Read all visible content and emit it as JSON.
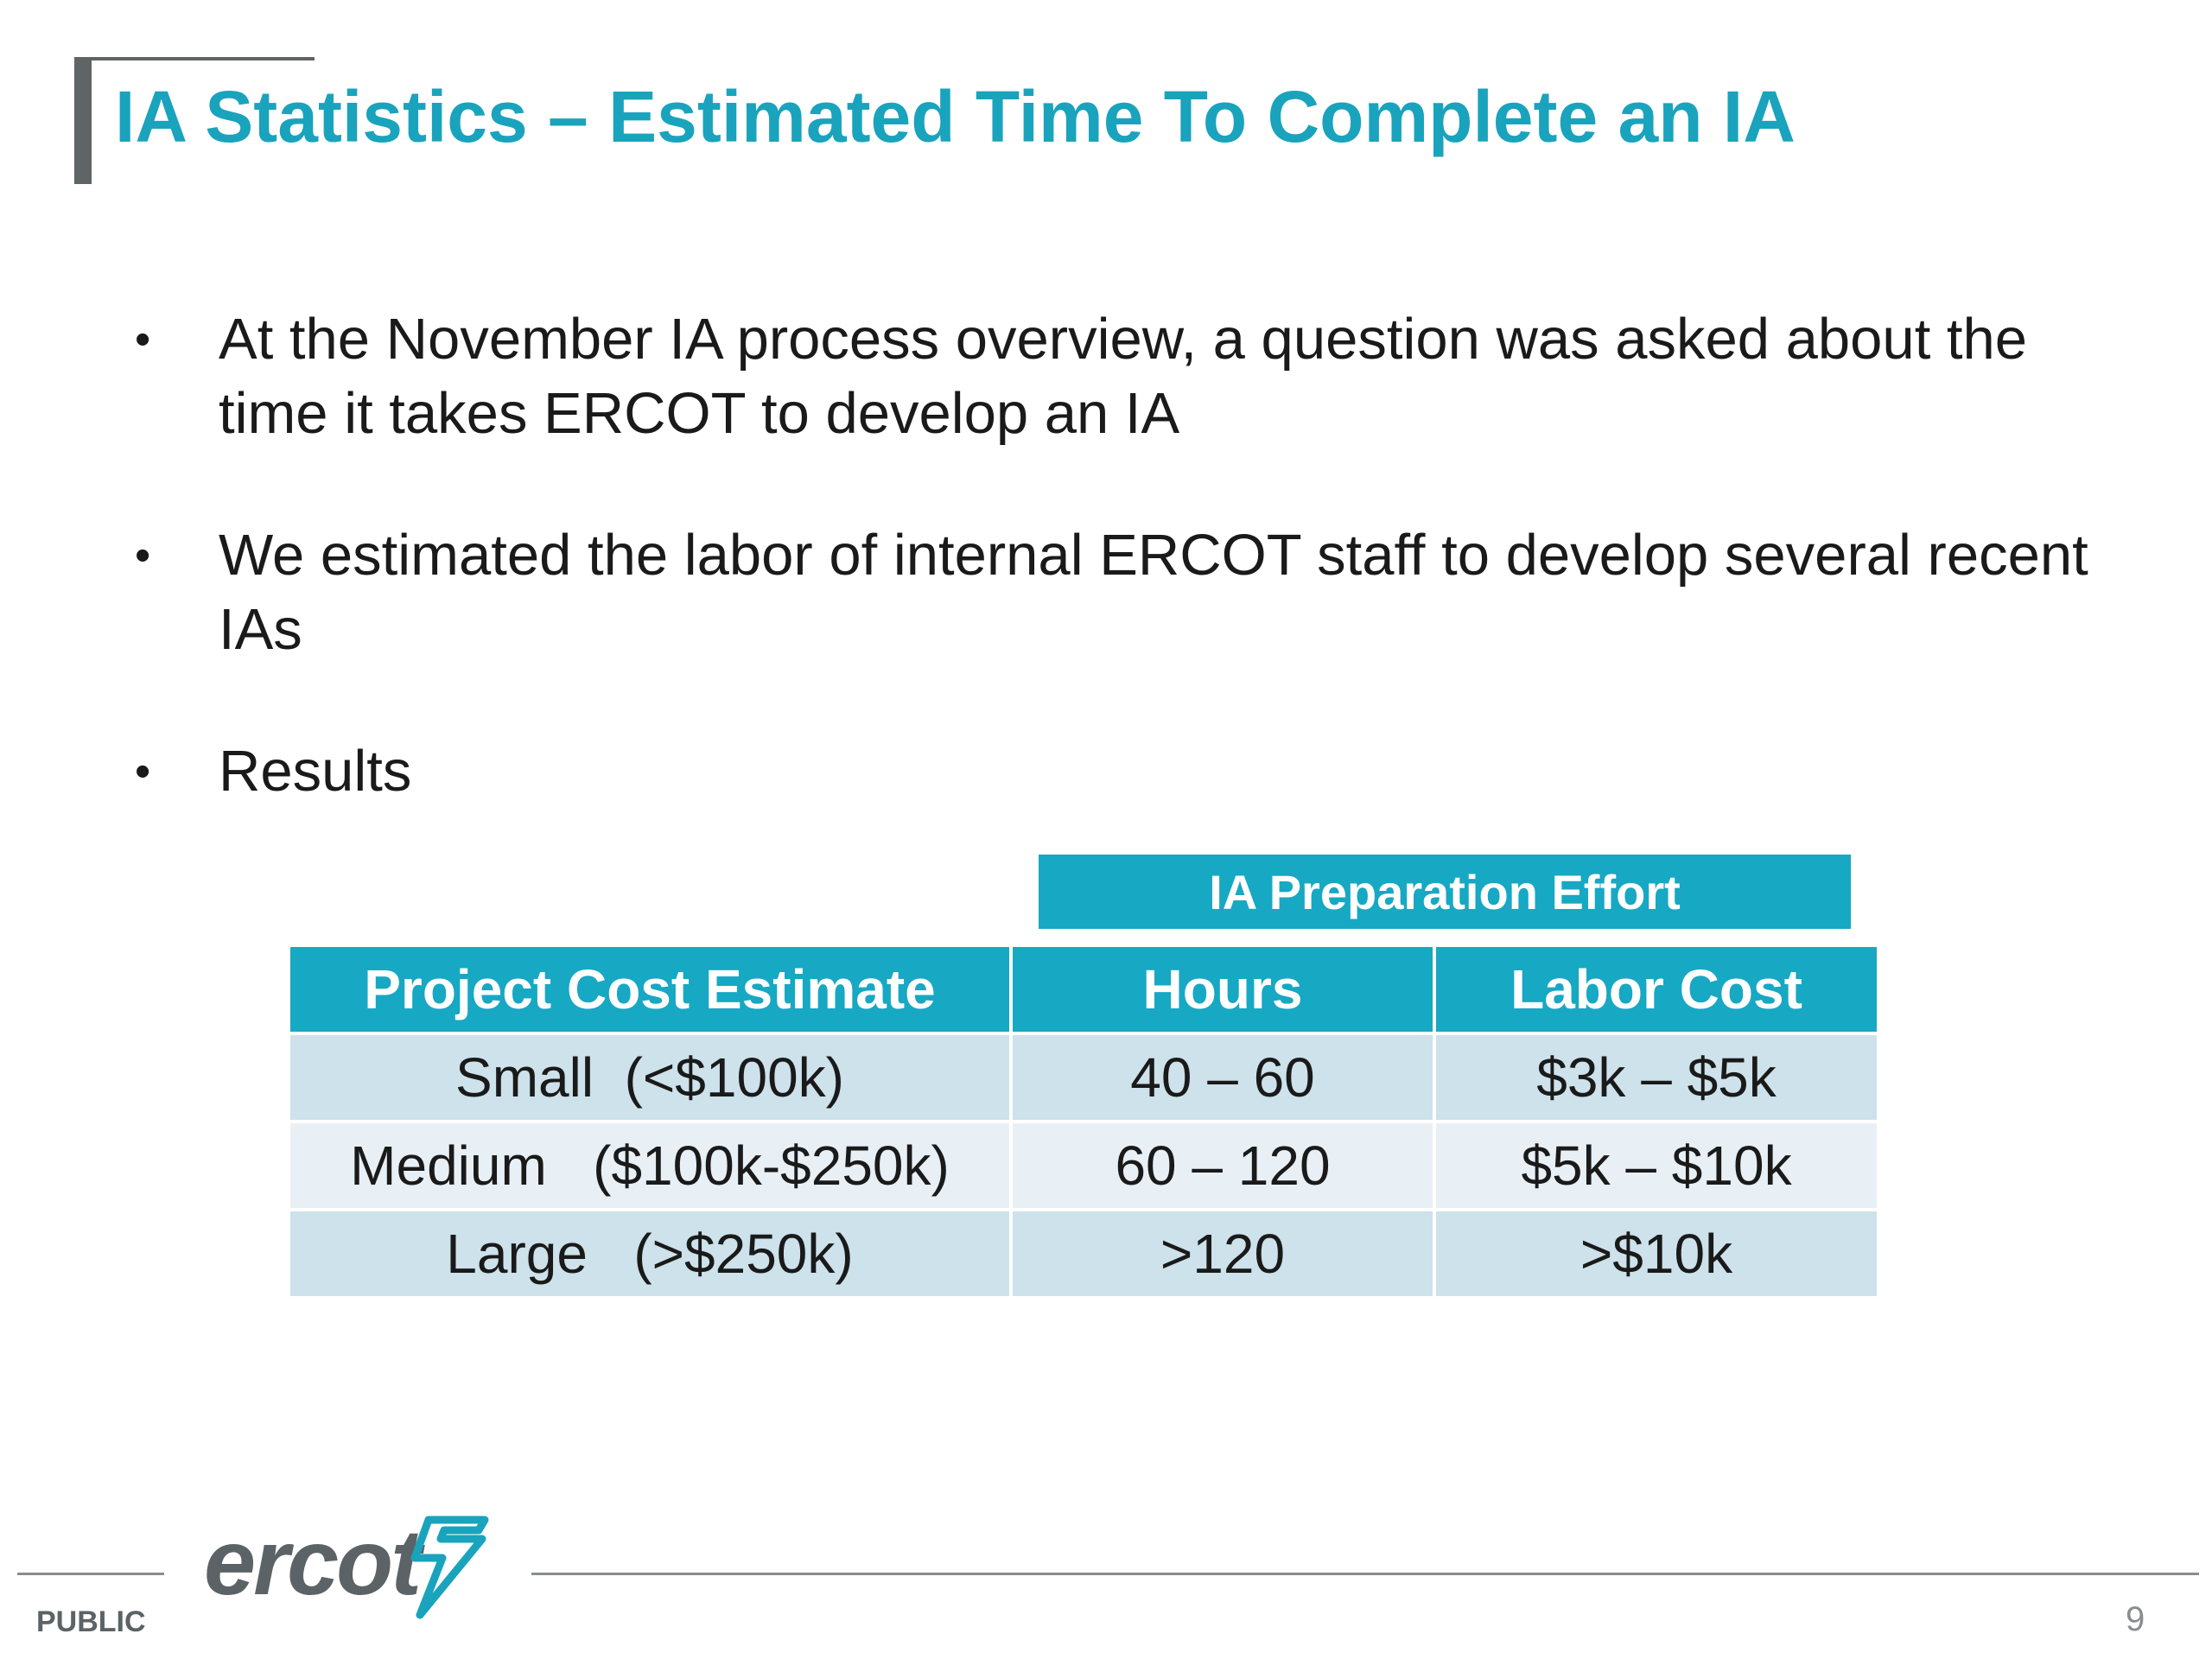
{
  "slide": {
    "title": "IA Statistics – Estimated Time To Complete an IA",
    "bullets": [
      "At the November IA process overview, a question was asked about the time it takes ERCOT to develop an IA",
      "We estimated the labor of internal ERCOT staff to develop several recent IAs",
      "Results"
    ],
    "bullet_symbol": "•"
  },
  "table": {
    "group_header": "IA Preparation Effort",
    "headers": [
      "Project Cost Estimate",
      "Hours",
      "Labor Cost"
    ],
    "rows": [
      [
        "Small  (<$100k)",
        "40 – 60",
        "$3k – $5k"
      ],
      [
        "Medium   ($100k-$250k)",
        "60 – 120",
        "$5k – $10k"
      ],
      [
        "Large   (>$250k)",
        ">120",
        ">$10k"
      ]
    ]
  },
  "footer": {
    "logo_text": "ercot",
    "classification": "PUBLIC",
    "page_number": "9"
  },
  "colors": {
    "accent": "#1aa3bd",
    "header_fill": "#17a8c3",
    "row_dark": "#cde2ea",
    "row_light": "#e8f0f5",
    "logo_gray": "#5c6366"
  }
}
